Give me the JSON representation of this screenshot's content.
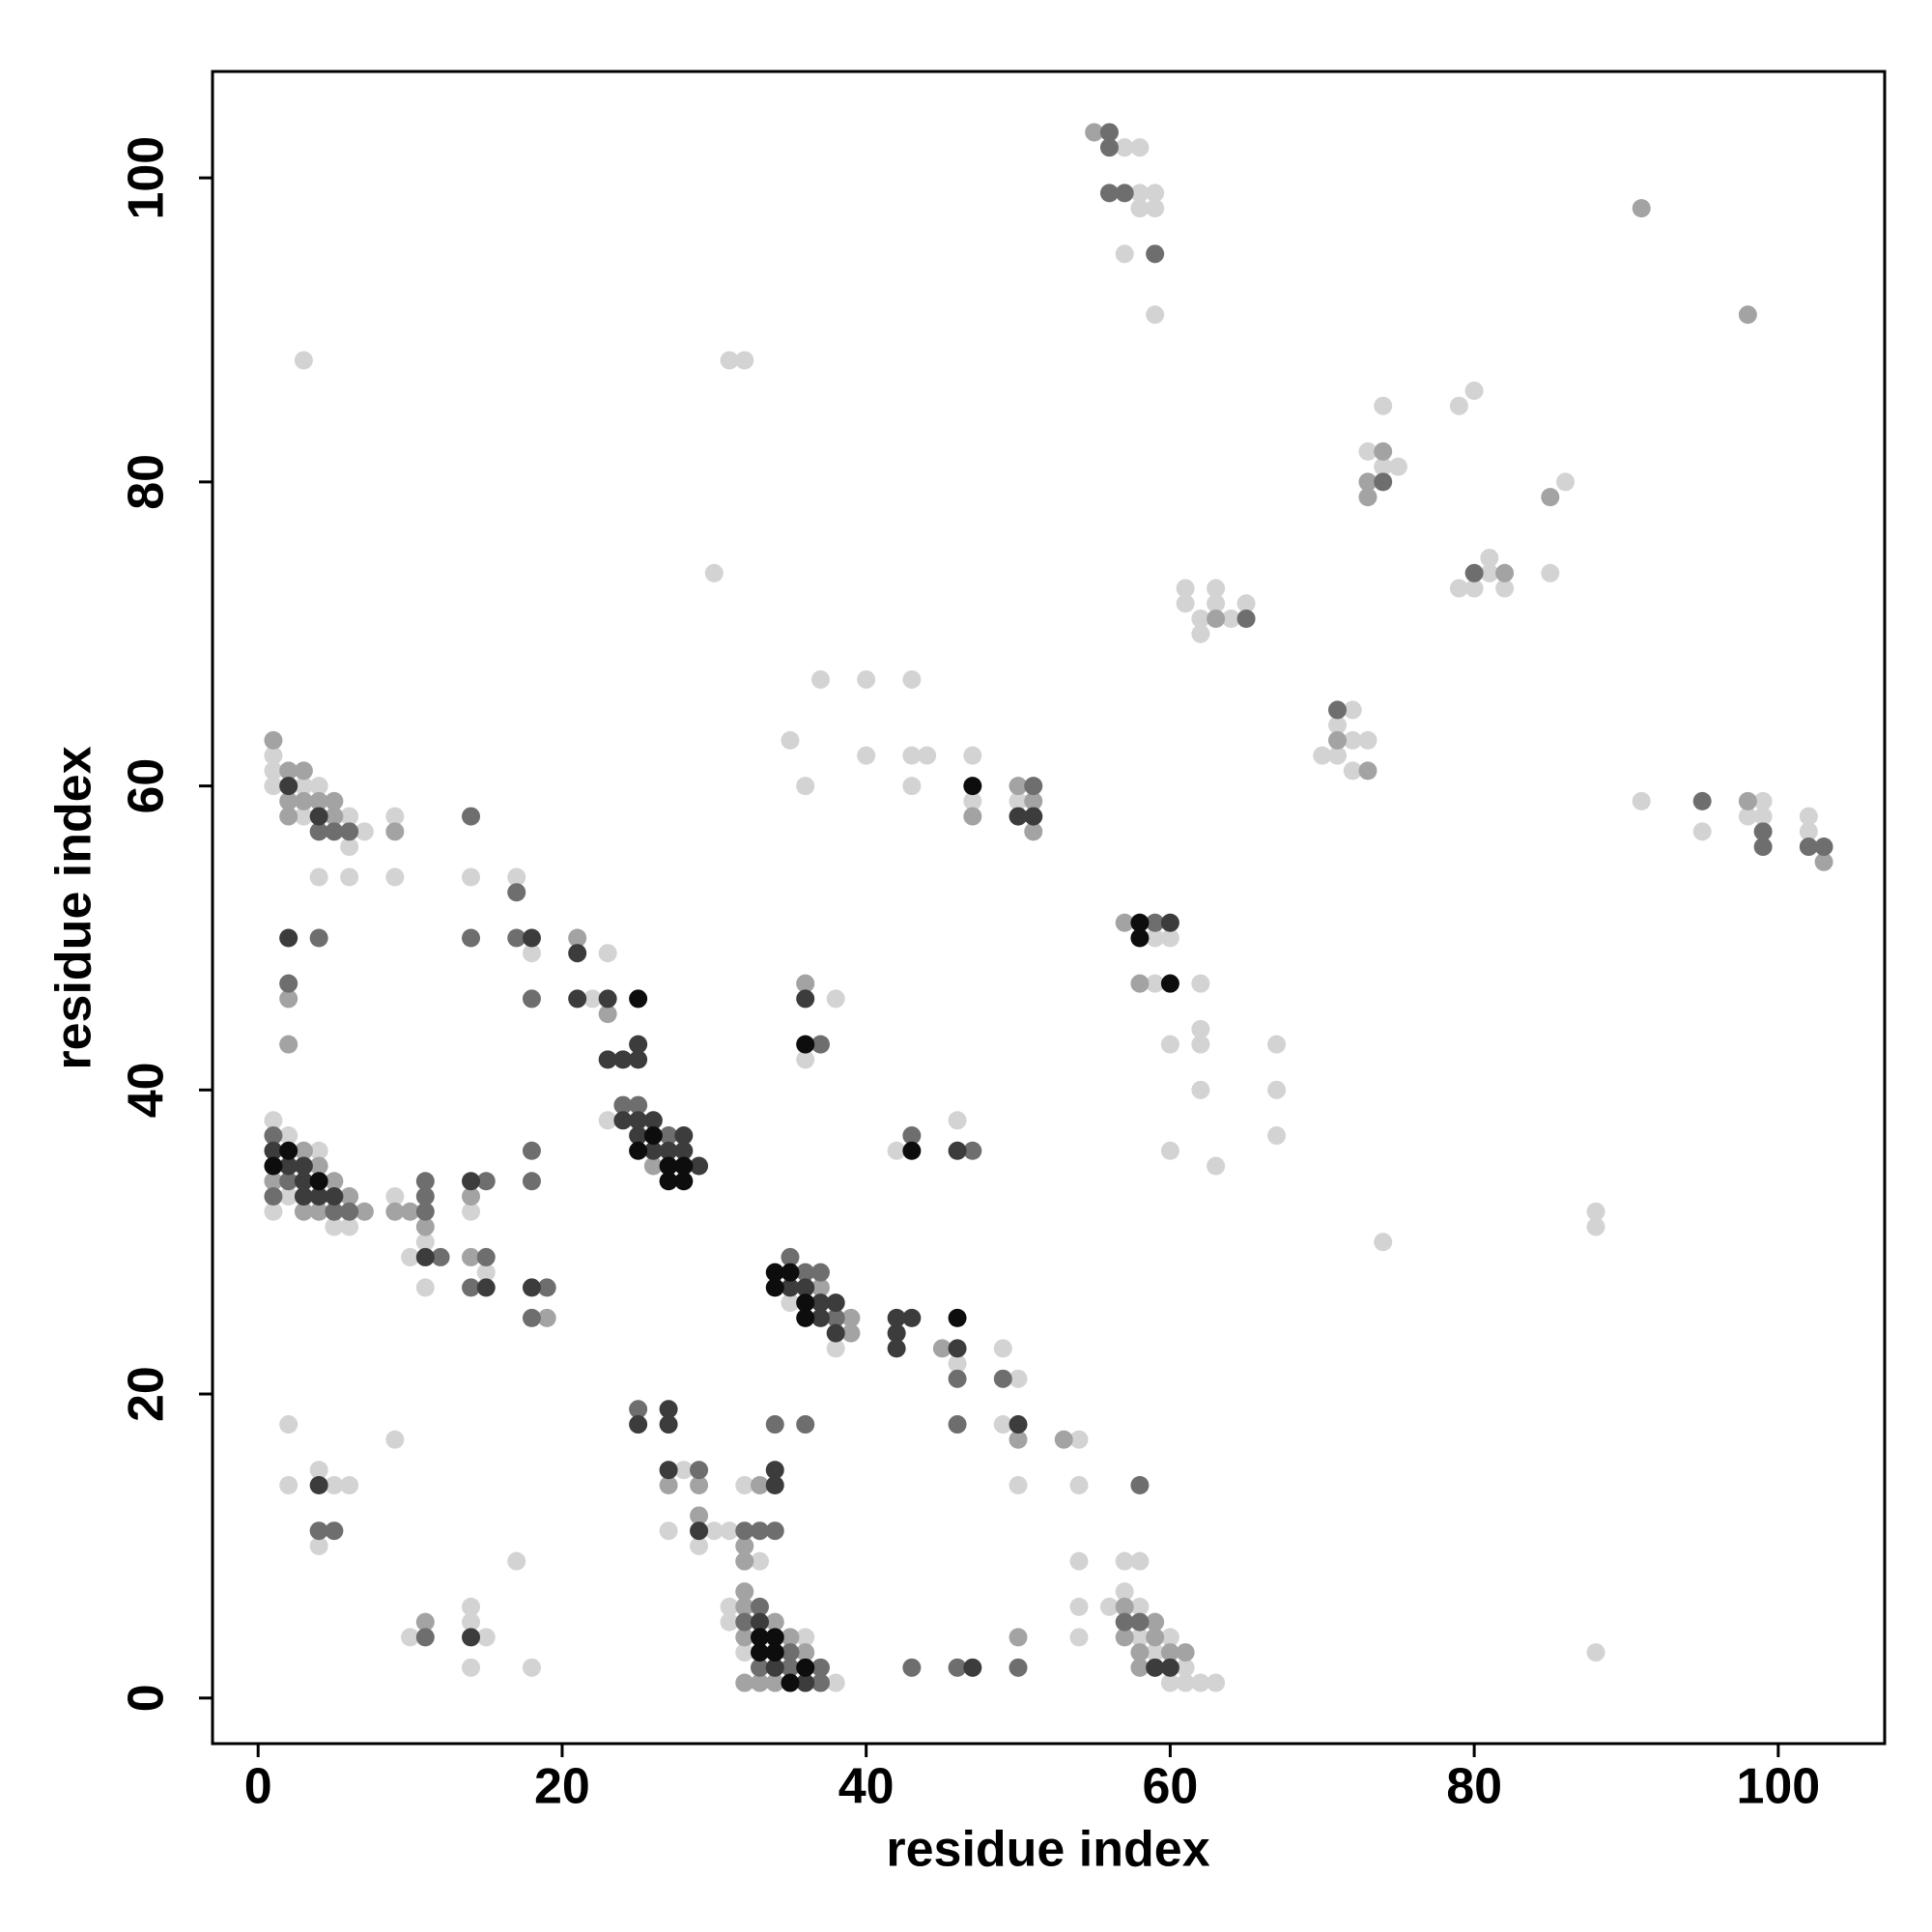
{
  "chart_data": {
    "type": "scatter",
    "xlabel": "residue index",
    "ylabel": "residue index",
    "xlim": [
      -3,
      107
    ],
    "ylim": [
      -3,
      107
    ],
    "xticks": [
      0,
      20,
      40,
      60,
      80,
      100
    ],
    "yticks": [
      0,
      20,
      40,
      60,
      80,
      100
    ],
    "grid": false,
    "series": [
      {
        "color": "#d3d3d3",
        "x": [
          57,
          58,
          58,
          59,
          58,
          59,
          57,
          59,
          3,
          31,
          32,
          74,
          79,
          80,
          73,
          74,
          75,
          86,
          30,
          79,
          80,
          81,
          81,
          82,
          85,
          61,
          61,
          63,
          63,
          62,
          64,
          65,
          62,
          37,
          40,
          43,
          72,
          71,
          72,
          73,
          70,
          71,
          72,
          35,
          40,
          43,
          44,
          47,
          36,
          43,
          47,
          50,
          91,
          95,
          99,
          98,
          99,
          102,
          102,
          1,
          1,
          1,
          3,
          3,
          4,
          6,
          6,
          7,
          4,
          6,
          9,
          9,
          14,
          17,
          18,
          23,
          22,
          38,
          36,
          59,
          60,
          59,
          62,
          62,
          62,
          60,
          62,
          67,
          67,
          67,
          60,
          63,
          23,
          42,
          46,
          1,
          1,
          2,
          2,
          4,
          5,
          6,
          9,
          11,
          10,
          11,
          14,
          15,
          35,
          38,
          46,
          49,
          50,
          49,
          54,
          50,
          54,
          2,
          9,
          2,
          4,
          5,
          6,
          4,
          28,
          27,
          30,
          31,
          29,
          32,
          33,
          17,
          31,
          31,
          36,
          32,
          38,
          10,
          14,
          14,
          15,
          14,
          18,
          54,
          57,
          58,
          57,
          54,
          56,
          58,
          58,
          60,
          54,
          59,
          61,
          60,
          61,
          62,
          63,
          88,
          88,
          88,
          74
        ],
        "y": [
          102,
          102,
          99,
          99,
          98,
          98,
          95,
          91,
          88,
          88,
          88,
          85,
          85,
          86,
          82,
          81,
          81,
          80,
          74,
          73,
          73,
          74,
          75,
          73,
          74,
          73,
          72,
          73,
          72,
          71,
          71,
          72,
          70,
          67,
          67,
          67,
          65,
          64,
          63,
          63,
          62,
          62,
          61,
          63,
          62,
          62,
          62,
          62,
          60,
          60,
          59,
          59,
          59,
          57,
          59,
          58,
          58,
          58,
          57,
          62,
          61,
          60,
          60,
          58,
          60,
          58,
          56,
          57,
          54,
          54,
          58,
          54,
          54,
          54,
          49,
          49,
          46,
          46,
          42,
          50,
          50,
          47,
          47,
          44,
          43,
          43,
          40,
          43,
          40,
          37,
          36,
          35,
          38,
          36,
          38,
          38,
          32,
          37,
          33,
          36,
          31,
          31,
          33,
          30,
          29,
          27,
          32,
          28,
          26,
          23,
          22,
          23,
          21,
          18,
          17,
          14,
          14,
          18,
          17,
          14,
          15,
          14,
          14,
          10,
          15,
          11,
          11,
          11,
          10,
          14,
          9,
          9,
          6,
          5,
          4,
          3,
          1,
          4,
          6,
          5,
          4,
          2,
          2,
          9,
          9,
          9,
          7,
          6,
          6,
          6,
          4,
          4,
          4,
          3,
          2,
          1,
          1,
          1,
          1,
          3,
          32,
          31,
          30
        ]
      },
      {
        "color": "#a3a3a3",
        "x": [
          55,
          91,
          98,
          74,
          73,
          73,
          85,
          82,
          63,
          71,
          73,
          47,
          50,
          51,
          51,
          103,
          98,
          1,
          2,
          2,
          2,
          3,
          3,
          4,
          5,
          5,
          9,
          21,
          2,
          2,
          23,
          36,
          57,
          58,
          26,
          1,
          3,
          3,
          4,
          4,
          5,
          6,
          7,
          9,
          10,
          11,
          14,
          14,
          19,
          37,
          39,
          39,
          45,
          50,
          53,
          27,
          29,
          29,
          33,
          32,
          32,
          32,
          32,
          34,
          32,
          35,
          36,
          32,
          33,
          34,
          11,
          50,
          57,
          59,
          57,
          59,
          58,
          60,
          61,
          58
        ],
        "y": [
          103,
          98,
          91,
          82,
          80,
          79,
          79,
          74,
          71,
          63,
          61,
          58,
          60,
          59,
          57,
          55,
          59,
          63,
          61,
          59,
          58,
          61,
          59,
          59,
          59,
          58,
          57,
          50,
          46,
          43,
          45,
          47,
          51,
          47,
          35,
          34,
          36,
          32,
          35,
          32,
          34,
          33,
          32,
          32,
          32,
          31,
          33,
          29,
          25,
          27,
          25,
          24,
          23,
          17,
          17,
          14,
          14,
          12,
          14,
          10,
          9,
          7,
          6,
          5,
          4,
          4,
          3,
          1,
          1,
          1,
          5,
          4,
          6,
          5,
          4,
          4,
          3,
          3,
          3,
          2
        ]
      },
      {
        "color": "#6e6e6e",
        "x": [
          56,
          56,
          56,
          57,
          59,
          74,
          80,
          65,
          71,
          51,
          95,
          99,
          99,
          102,
          103,
          4,
          5,
          6,
          14,
          17,
          4,
          14,
          17,
          2,
          18,
          37,
          59,
          24,
          25,
          27,
          43,
          47,
          1,
          1,
          2,
          5,
          6,
          11,
          11,
          11,
          12,
          15,
          15,
          14,
          18,
          18,
          19,
          18,
          35,
          36,
          37,
          38,
          46,
          49,
          46,
          4,
          5,
          25,
          29,
          32,
          33,
          34,
          36,
          34,
          58,
          33,
          32,
          35,
          33,
          35,
          37,
          37,
          11,
          43,
          46,
          50,
          57,
          58
        ],
        "y": [
          103,
          102,
          99,
          99,
          95,
          80,
          74,
          71,
          65,
          60,
          59,
          57,
          56,
          56,
          56,
          57,
          57,
          57,
          58,
          53,
          50,
          50,
          50,
          47,
          46,
          43,
          51,
          39,
          39,
          37,
          37,
          36,
          37,
          33,
          34,
          32,
          32,
          34,
          33,
          32,
          29,
          34,
          29,
          27,
          36,
          34,
          27,
          25,
          29,
          28,
          28,
          25,
          21,
          21,
          18,
          11,
          11,
          19,
          15,
          11,
          11,
          11,
          18,
          18,
          14,
          6,
          5,
          3,
          2,
          2,
          2,
          1,
          4,
          2,
          2,
          2,
          5,
          5
        ]
      },
      {
        "color": "#3c3c3c",
        "x": [
          2,
          4,
          2,
          18,
          21,
          21,
          23,
          23,
          24,
          25,
          25,
          36,
          60,
          50,
          51,
          24,
          25,
          26,
          25,
          28,
          26,
          27,
          28,
          29,
          46,
          1,
          2,
          3,
          3,
          3,
          4,
          5,
          11,
          14,
          15,
          18,
          35,
          36,
          37,
          38,
          37,
          38,
          42,
          43,
          42,
          42,
          46,
          50,
          25,
          27,
          27,
          27,
          29,
          34,
          34,
          4,
          33,
          34,
          36,
          14,
          47,
          59,
          60
        ],
        "y": [
          60,
          58,
          50,
          50,
          49,
          46,
          46,
          42,
          42,
          43,
          42,
          46,
          51,
          58,
          58,
          38,
          38,
          38,
          37,
          37,
          36,
          36,
          36,
          35,
          36,
          36,
          35,
          35,
          34,
          33,
          33,
          33,
          29,
          34,
          27,
          27,
          27,
          27,
          26,
          26,
          25,
          24,
          25,
          25,
          24,
          23,
          23,
          18,
          18,
          19,
          18,
          15,
          11,
          15,
          14,
          14,
          5,
          2,
          1,
          4,
          2,
          2,
          2
        ]
      },
      {
        "color": "#0d0d0d",
        "x": [
          47,
          25,
          36,
          58,
          58,
          60,
          26,
          25,
          27,
          28,
          27,
          28,
          43,
          1,
          2,
          4,
          34,
          35,
          34,
          36,
          36,
          46,
          33,
          34,
          33,
          34,
          36,
          35
        ],
        "y": [
          60,
          46,
          43,
          51,
          50,
          47,
          37,
          36,
          35,
          35,
          34,
          34,
          36,
          35,
          36,
          34,
          28,
          28,
          27,
          26,
          25,
          25,
          4,
          4,
          3,
          3,
          2,
          1
        ]
      }
    ]
  }
}
